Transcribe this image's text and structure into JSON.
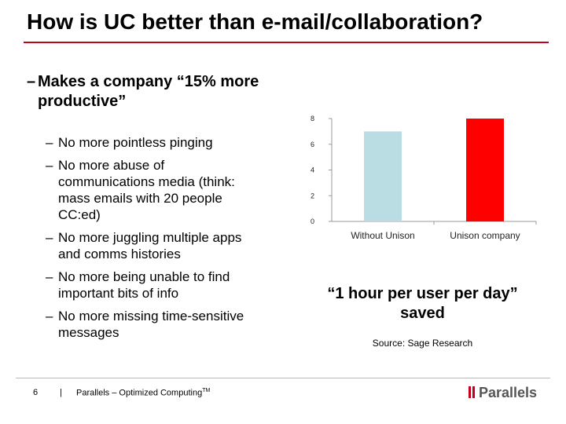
{
  "slide": {
    "title": "How is UC better than e-mail/collaboration?",
    "main_dash": "–",
    "main_bullet": "Makes a company “15% more productive”",
    "sub_dash": "–",
    "sub_bullets": [
      "No more pointless pinging",
      "No more abuse of communications media (think: mass emails with 20 people CC:ed)",
      "No more juggling multiple apps and comms histories",
      "No more being unable to find important bits of info",
      "No more missing time-sensitive messages"
    ],
    "quote": "“1 hour per user per day” saved",
    "source": "Source: Sage Research"
  },
  "footer": {
    "page_number": "6",
    "separator": "|",
    "tagline": "Parallels – Optimized Computing",
    "tagline_mark": "TM",
    "logo_text": "Parallels"
  },
  "colors": {
    "accent": "#c4001a",
    "bar_without": "#b9dde2",
    "bar_with": "#ff0000"
  },
  "chart_data": {
    "type": "bar",
    "categories": [
      "Without Unison",
      "Unison company"
    ],
    "values": [
      7,
      8
    ],
    "ylim": [
      0,
      8
    ],
    "yticks": [
      0,
      2,
      4,
      6,
      8
    ],
    "colors": [
      "#b9dde2",
      "#ff0000"
    ],
    "grid": false,
    "legend": "none",
    "title": "",
    "xlabel": "",
    "ylabel": ""
  }
}
